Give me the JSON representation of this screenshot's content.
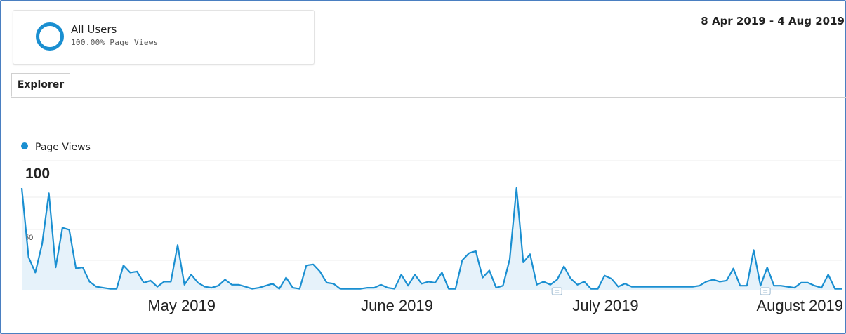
{
  "segment": {
    "name": "All Users",
    "subtitle": "100.00% Page Views"
  },
  "date_range": "8 Apr 2019 - 4 Aug 2019",
  "tabs": [
    {
      "label": "Explorer"
    }
  ],
  "colors": {
    "line": "#1a8fd1",
    "fill": "#e6f2fa",
    "frame": "#4a7fc1"
  },
  "chart_data": {
    "type": "area",
    "legend": [
      {
        "name": "Page Views"
      }
    ],
    "series": [
      {
        "name": "Page Views",
        "x_start": "2019-04-08",
        "x_end": "2019-08-04",
        "values": [
          100,
          32,
          17,
          45,
          95,
          22,
          61,
          59,
          21,
          22,
          8,
          3,
          2,
          1,
          1,
          24,
          17,
          18,
          7,
          9,
          3,
          8,
          8,
          44,
          5,
          15,
          7,
          3,
          2,
          4,
          10,
          5,
          5,
          3,
          1,
          2,
          4,
          6,
          1,
          12,
          2,
          1,
          24,
          25,
          18,
          7,
          6,
          1,
          1,
          1,
          1,
          2,
          2,
          5,
          2,
          1,
          15,
          4,
          15,
          6,
          8,
          7,
          17,
          1,
          1,
          29,
          36,
          38,
          12,
          19,
          2,
          4,
          30,
          100,
          27,
          35,
          5,
          8,
          5,
          10,
          23,
          11,
          5,
          8,
          1,
          1,
          14,
          11,
          3,
          6,
          3,
          3,
          3,
          3,
          3,
          3,
          3,
          3,
          3,
          3,
          4,
          8,
          10,
          8,
          9,
          21,
          4,
          4,
          39,
          4,
          22,
          4,
          4,
          3,
          2,
          7,
          7,
          4,
          2,
          15,
          1,
          1
        ]
      }
    ],
    "y_ticks": [
      {
        "value": 100,
        "label": "100"
      },
      {
        "value": 50,
        "label": "50"
      }
    ],
    "ylim": [
      0,
      100
    ],
    "x_tick_labels": [
      "May 2019",
      "June 2019",
      "July 2019",
      "August 2019"
    ],
    "grid": true,
    "annotations": [
      "2019-06-24",
      "2019-07-24"
    ]
  }
}
